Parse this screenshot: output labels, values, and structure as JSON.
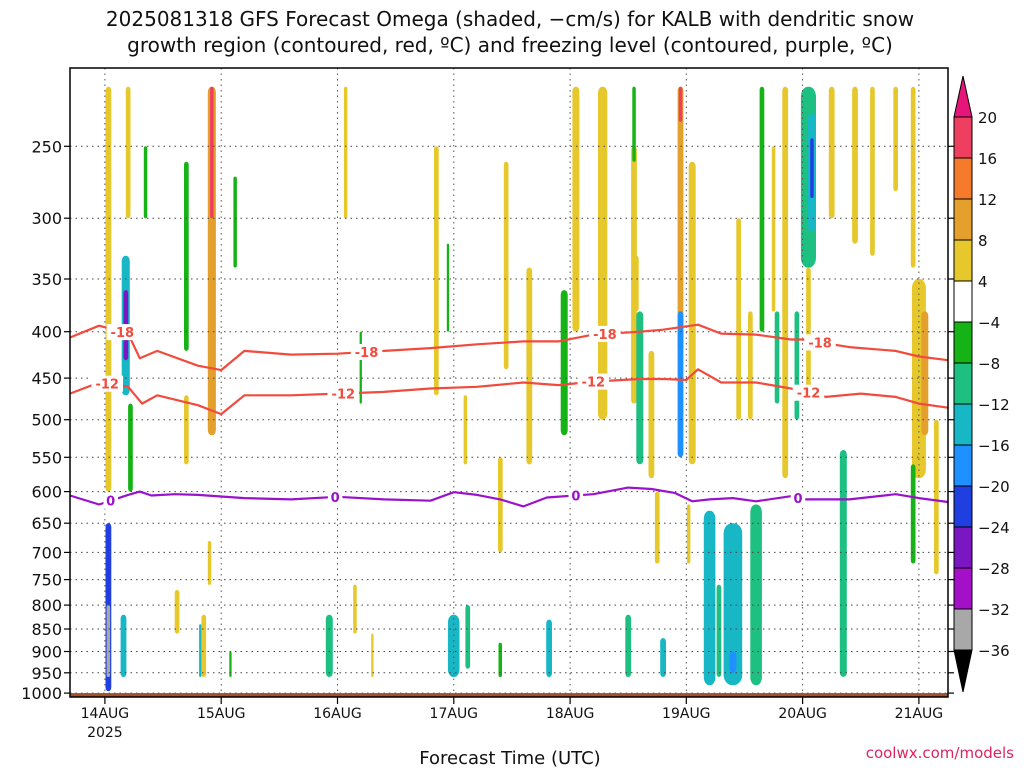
{
  "chart_data": {
    "type": "heatmap",
    "title": "2025081318 GFS Forecast Omega (shaded, −cm/s) for KALB with dendritic snow growth region (contoured, red, ºC) and freezing level (contoured, purple, ºC)",
    "title_lines": [
      "2025081318 GFS Forecast Omega (shaded, −cm/s) for KALB with dendritic snow",
      "growth region (contoured, red, ºC) and freezing level (contoured, purple, ºC)"
    ],
    "xlabel": "Forecast Time (UTC)",
    "ylabel": "",
    "y_axis": {
      "scale": "log",
      "inverted": true,
      "ylim": [
        1010,
        205
      ],
      "ticks": [
        250,
        300,
        350,
        400,
        450,
        500,
        550,
        600,
        650,
        700,
        750,
        800,
        850,
        900,
        950,
        1000
      ]
    },
    "x_axis": {
      "xlim": [
        -0.3,
        7.25
      ],
      "ticks": [
        {
          "day": 0,
          "label": "14AUG",
          "sub": "2025"
        },
        {
          "day": 1,
          "label": "15AUG"
        },
        {
          "day": 2,
          "label": "16AUG"
        },
        {
          "day": 3,
          "label": "17AUG"
        },
        {
          "day": 4,
          "label": "18AUG"
        },
        {
          "day": 5,
          "label": "19AUG"
        },
        {
          "day": 6,
          "label": "20AUG"
        },
        {
          "day": 7,
          "label": "21AUG"
        }
      ]
    },
    "grid": true,
    "colorbar": {
      "levels": [
        20,
        16,
        12,
        8,
        4,
        -4,
        -8,
        -12,
        -16,
        -20,
        -24,
        -28,
        -32,
        -36
      ],
      "colors": [
        "#ef3f60",
        "#f57a2a",
        "#e3a02c",
        "#e6c82c",
        "#ffffff",
        "#15b315",
        "#1ec082",
        "#18b7c6",
        "#1e90ff",
        "#1f3fe0",
        "#7a17c2",
        "#a40fc8",
        "#a8a8a8"
      ],
      "above_color": "#e5157a",
      "below_color": "#000000"
    },
    "omega_cells": [
      {
        "day": 0.03,
        "p0": 215,
        "p1": 600,
        "w": 0.05,
        "v": 6
      },
      {
        "day": 0.03,
        "p0": 650,
        "p1": 995,
        "w": 0.05,
        "v": -20
      },
      {
        "day": 0.03,
        "p0": 800,
        "p1": 960,
        "w": 0.03,
        "v": -32
      },
      {
        "day": 0.18,
        "p0": 330,
        "p1": 470,
        "w": 0.07,
        "v": -14
      },
      {
        "day": 0.18,
        "p0": 360,
        "p1": 430,
        "w": 0.04,
        "v": -25
      },
      {
        "day": 0.2,
        "p0": 215,
        "p1": 300,
        "w": 0.04,
        "v": 6
      },
      {
        "day": 0.22,
        "p0": 480,
        "p1": 600,
        "w": 0.04,
        "v": -6
      },
      {
        "day": 0.16,
        "p0": 820,
        "p1": 960,
        "w": 0.05,
        "v": -14
      },
      {
        "day": 0.35,
        "p0": 250,
        "p1": 300,
        "w": 0.03,
        "v": -6
      },
      {
        "day": 0.92,
        "p0": 215,
        "p1": 520,
        "w": 0.07,
        "v": 10
      },
      {
        "day": 0.92,
        "p0": 215,
        "p1": 300,
        "w": 0.03,
        "v": 18
      },
      {
        "day": 0.7,
        "p0": 260,
        "p1": 420,
        "w": 0.04,
        "v": -6
      },
      {
        "day": 0.7,
        "p0": 470,
        "p1": 560,
        "w": 0.04,
        "v": 6
      },
      {
        "day": 1.12,
        "p0": 270,
        "p1": 340,
        "w": 0.03,
        "v": -6
      },
      {
        "day": 0.62,
        "p0": 770,
        "p1": 860,
        "w": 0.04,
        "v": 6
      },
      {
        "day": 0.85,
        "p0": 820,
        "p1": 960,
        "w": 0.04,
        "v": 6
      },
      {
        "day": 0.82,
        "p0": 840,
        "p1": 960,
        "w": 0.02,
        "v": -14
      },
      {
        "day": 1.08,
        "p0": 900,
        "p1": 960,
        "w": 0.02,
        "v": -6
      },
      {
        "day": 0.9,
        "p0": 680,
        "p1": 760,
        "w": 0.03,
        "v": 6
      },
      {
        "day": 1.93,
        "p0": 820,
        "p1": 960,
        "w": 0.06,
        "v": -8
      },
      {
        "day": 2.15,
        "p0": 760,
        "p1": 860,
        "w": 0.03,
        "v": 6
      },
      {
        "day": 2.07,
        "p0": 215,
        "p1": 300,
        "w": 0.03,
        "v": 6
      },
      {
        "day": 2.2,
        "p0": 400,
        "p1": 480,
        "w": 0.02,
        "v": -6
      },
      {
        "day": 2.3,
        "p0": 860,
        "p1": 960,
        "w": 0.02,
        "v": 6
      },
      {
        "day": 2.85,
        "p0": 250,
        "p1": 470,
        "w": 0.04,
        "v": 6
      },
      {
        "day": 2.95,
        "p0": 320,
        "p1": 400,
        "w": 0.02,
        "v": -6
      },
      {
        "day": 3.0,
        "p0": 820,
        "p1": 960,
        "w": 0.1,
        "v": -12
      },
      {
        "day": 3.12,
        "p0": 800,
        "p1": 940,
        "w": 0.04,
        "v": -8
      },
      {
        "day": 3.1,
        "p0": 470,
        "p1": 560,
        "w": 0.03,
        "v": 6
      },
      {
        "day": 3.45,
        "p0": 260,
        "p1": 440,
        "w": 0.04,
        "v": 6
      },
      {
        "day": 3.4,
        "p0": 550,
        "p1": 700,
        "w": 0.04,
        "v": 6
      },
      {
        "day": 3.4,
        "p0": 880,
        "p1": 960,
        "w": 0.03,
        "v": -6
      },
      {
        "day": 3.65,
        "p0": 340,
        "p1": 560,
        "w": 0.05,
        "v": 6
      },
      {
        "day": 3.82,
        "p0": 830,
        "p1": 960,
        "w": 0.05,
        "v": -12
      },
      {
        "day": 3.95,
        "p0": 360,
        "p1": 520,
        "w": 0.06,
        "v": -6
      },
      {
        "day": 4.05,
        "p0": 215,
        "p1": 400,
        "w": 0.06,
        "v": 6
      },
      {
        "day": 4.28,
        "p0": 215,
        "p1": 500,
        "w": 0.08,
        "v": 8
      },
      {
        "day": 4.55,
        "p0": 250,
        "p1": 480,
        "w": 0.05,
        "v": 6
      },
      {
        "day": 4.55,
        "p0": 215,
        "p1": 260,
        "w": 0.03,
        "v": -6
      },
      {
        "day": 4.6,
        "p0": 380,
        "p1": 560,
        "w": 0.06,
        "v": -8
      },
      {
        "day": 4.57,
        "p0": 330,
        "p1": 380,
        "w": 0.04,
        "v": 6
      },
      {
        "day": 4.7,
        "p0": 420,
        "p1": 580,
        "w": 0.05,
        "v": 6
      },
      {
        "day": 4.75,
        "p0": 600,
        "p1": 720,
        "w": 0.04,
        "v": 6
      },
      {
        "day": 4.5,
        "p0": 820,
        "p1": 960,
        "w": 0.05,
        "v": -8
      },
      {
        "day": 4.8,
        "p0": 870,
        "p1": 960,
        "w": 0.05,
        "v": -12
      },
      {
        "day": 4.95,
        "p0": 215,
        "p1": 420,
        "w": 0.05,
        "v": 10
      },
      {
        "day": 4.95,
        "p0": 215,
        "p1": 235,
        "w": 0.03,
        "v": 18
      },
      {
        "day": 4.95,
        "p0": 380,
        "p1": 550,
        "w": 0.05,
        "v": -16
      },
      {
        "day": 5.05,
        "p0": 260,
        "p1": 560,
        "w": 0.06,
        "v": 6
      },
      {
        "day": 5.02,
        "p0": 620,
        "p1": 720,
        "w": 0.03,
        "v": 6
      },
      {
        "day": 5.2,
        "p0": 630,
        "p1": 980,
        "w": 0.1,
        "v": -12
      },
      {
        "day": 5.28,
        "p0": 760,
        "p1": 960,
        "w": 0.04,
        "v": -8
      },
      {
        "day": 5.4,
        "p0": 650,
        "p1": 980,
        "w": 0.16,
        "v": -12
      },
      {
        "day": 5.4,
        "p0": 900,
        "p1": 950,
        "w": 0.06,
        "v": -16
      },
      {
        "day": 5.6,
        "p0": 620,
        "p1": 980,
        "w": 0.1,
        "v": -8
      },
      {
        "day": 5.65,
        "p0": 215,
        "p1": 400,
        "w": 0.04,
        "v": -6
      },
      {
        "day": 5.45,
        "p0": 300,
        "p1": 500,
        "w": 0.04,
        "v": 6
      },
      {
        "day": 5.75,
        "p0": 250,
        "p1": 380,
        "w": 0.03,
        "v": 6
      },
      {
        "day": 5.55,
        "p0": 380,
        "p1": 500,
        "w": 0.04,
        "v": 6
      },
      {
        "day": 5.85,
        "p0": 215,
        "p1": 580,
        "w": 0.05,
        "v": 6
      },
      {
        "day": 5.78,
        "p0": 380,
        "p1": 480,
        "w": 0.04,
        "v": -8
      },
      {
        "day": 5.95,
        "p0": 380,
        "p1": 500,
        "w": 0.04,
        "v": -8
      },
      {
        "day": 6.05,
        "p0": 215,
        "p1": 340,
        "w": 0.13,
        "v": -8
      },
      {
        "day": 6.08,
        "p0": 230,
        "p1": 310,
        "w": 0.07,
        "v": -14
      },
      {
        "day": 6.08,
        "p0": 245,
        "p1": 285,
        "w": 0.03,
        "v": -22
      },
      {
        "day": 6.05,
        "p0": 340,
        "p1": 460,
        "w": 0.04,
        "v": 6
      },
      {
        "day": 6.25,
        "p0": 215,
        "p1": 300,
        "w": 0.05,
        "v": 6
      },
      {
        "day": 6.35,
        "p0": 540,
        "p1": 960,
        "w": 0.06,
        "v": -8
      },
      {
        "day": 6.45,
        "p0": 215,
        "p1": 320,
        "w": 0.05,
        "v": 6
      },
      {
        "day": 6.6,
        "p0": 215,
        "p1": 330,
        "w": 0.04,
        "v": 6
      },
      {
        "day": 6.8,
        "p0": 215,
        "p1": 280,
        "w": 0.04,
        "v": 6
      },
      {
        "day": 7.0,
        "p0": 350,
        "p1": 580,
        "w": 0.12,
        "v": 8
      },
      {
        "day": 7.05,
        "p0": 380,
        "p1": 520,
        "w": 0.06,
        "v": 11
      },
      {
        "day": 7.15,
        "p0": 500,
        "p1": 740,
        "w": 0.04,
        "v": 6
      },
      {
        "day": 6.95,
        "p0": 560,
        "p1": 720,
        "w": 0.04,
        "v": -6
      },
      {
        "day": 6.95,
        "p0": 215,
        "p1": 340,
        "w": 0.04,
        "v": 6
      }
    ],
    "series": [
      {
        "name": "-18",
        "color": "#f24a3d",
        "points": [
          [
            -0.3,
            406
          ],
          [
            -0.05,
            394
          ],
          [
            0.2,
            402
          ],
          [
            0.3,
            428
          ],
          [
            0.45,
            420
          ],
          [
            0.8,
            436
          ],
          [
            1.0,
            441
          ],
          [
            1.2,
            420
          ],
          [
            1.6,
            424
          ],
          [
            2.0,
            423
          ],
          [
            2.4,
            420
          ],
          [
            2.8,
            417
          ],
          [
            3.2,
            413
          ],
          [
            3.6,
            410
          ],
          [
            3.9,
            410
          ],
          [
            4.2,
            403
          ],
          [
            4.6,
            400
          ],
          [
            4.8,
            398
          ],
          [
            5.1,
            393
          ],
          [
            5.3,
            402
          ],
          [
            5.6,
            403
          ],
          [
            5.9,
            408
          ],
          [
            6.0,
            408
          ],
          [
            6.4,
            416
          ],
          [
            6.8,
            420
          ],
          [
            7.0,
            426
          ],
          [
            7.25,
            430
          ]
        ]
      },
      {
        "name": "-12",
        "color": "#f24a3d",
        "points": [
          [
            -0.3,
            468
          ],
          [
            -0.05,
            455
          ],
          [
            0.2,
            460
          ],
          [
            0.32,
            480
          ],
          [
            0.45,
            470
          ],
          [
            0.8,
            482
          ],
          [
            1.0,
            493
          ],
          [
            1.2,
            470
          ],
          [
            1.6,
            470
          ],
          [
            2.0,
            468
          ],
          [
            2.4,
            466
          ],
          [
            2.8,
            462
          ],
          [
            3.2,
            460
          ],
          [
            3.6,
            455
          ],
          [
            3.9,
            458
          ],
          [
            4.2,
            454
          ],
          [
            4.6,
            451
          ],
          [
            4.8,
            451
          ],
          [
            5.0,
            452
          ],
          [
            5.1,
            440
          ],
          [
            5.3,
            455
          ],
          [
            5.6,
            455
          ],
          [
            5.9,
            462
          ],
          [
            6.2,
            472
          ],
          [
            6.5,
            468
          ],
          [
            6.8,
            472
          ],
          [
            7.0,
            480
          ],
          [
            7.25,
            485
          ]
        ]
      },
      {
        "name": "0",
        "color": "#9a12cc",
        "points": [
          [
            -0.3,
            606
          ],
          [
            -0.05,
            620
          ],
          [
            0.2,
            605
          ],
          [
            0.3,
            600
          ],
          [
            0.4,
            606
          ],
          [
            0.6,
            604
          ],
          [
            0.8,
            605
          ],
          [
            1.2,
            610
          ],
          [
            1.6,
            612
          ],
          [
            2.0,
            608
          ],
          [
            2.4,
            612
          ],
          [
            2.8,
            614
          ],
          [
            3.0,
            601
          ],
          [
            3.2,
            605
          ],
          [
            3.4,
            612
          ],
          [
            3.6,
            623
          ],
          [
            3.8,
            609
          ],
          [
            4.2,
            604
          ],
          [
            4.5,
            594
          ],
          [
            4.7,
            596
          ],
          [
            4.9,
            602
          ],
          [
            5.05,
            615
          ],
          [
            5.2,
            612
          ],
          [
            5.4,
            610
          ],
          [
            5.6,
            615
          ],
          [
            5.9,
            607
          ],
          [
            6.0,
            612
          ],
          [
            6.4,
            612
          ],
          [
            6.8,
            604
          ],
          [
            7.0,
            610
          ],
          [
            7.25,
            616
          ]
        ]
      }
    ],
    "contour_labels": [
      {
        "text": "-18",
        "series": 0,
        "day": 0.15
      },
      {
        "text": "-18",
        "series": 0,
        "day": 2.25
      },
      {
        "text": "-18",
        "series": 0,
        "day": 4.3
      },
      {
        "text": "-18",
        "series": 0,
        "day": 6.15
      },
      {
        "text": "-12",
        "series": 1,
        "day": 0.02
      },
      {
        "text": "-12",
        "series": 1,
        "day": 2.05
      },
      {
        "text": "-12",
        "series": 1,
        "day": 4.2
      },
      {
        "text": "-12",
        "series": 1,
        "day": 6.05
      },
      {
        "text": "0",
        "series": 2,
        "day": 0.05
      },
      {
        "text": "0",
        "series": 2,
        "day": 1.98
      },
      {
        "text": "0",
        "series": 2,
        "day": 4.05
      },
      {
        "text": "0",
        "series": 2,
        "day": 5.96
      }
    ],
    "terrain": {
      "label": "ground",
      "p_top": 1000,
      "color": "#a0522d"
    }
  },
  "credit": "coolwx.com/models"
}
